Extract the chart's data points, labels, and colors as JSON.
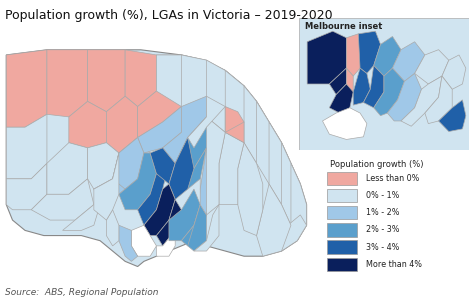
{
  "title": "Population growth (%), LGAs in Victoria – 2019-2020",
  "title_fontsize": 9.0,
  "source_text": "Source:  ABS, Regional Population",
  "source_fontsize": 6.5,
  "inset_label": "Melbourne inset",
  "legend_title": "Population growth (%)",
  "legend_entries": [
    {
      "label": "Less than 0%",
      "color": "#f0a8a0"
    },
    {
      "label": "0% - 1%",
      "color": "#d0e4f0"
    },
    {
      "label": "1% - 2%",
      "color": "#a0c8e8"
    },
    {
      "label": "2% - 3%",
      "color": "#5a9fcc"
    },
    {
      "label": "3% - 4%",
      "color": "#2060a8"
    },
    {
      "label": "More than 4%",
      "color": "#0a1f5c"
    }
  ],
  "bg_color": "#ffffff",
  "border_color": "#aaaaaa",
  "border_lw": 0.5,
  "fig_width": 4.74,
  "fig_height": 3.0,
  "dpi": 100
}
